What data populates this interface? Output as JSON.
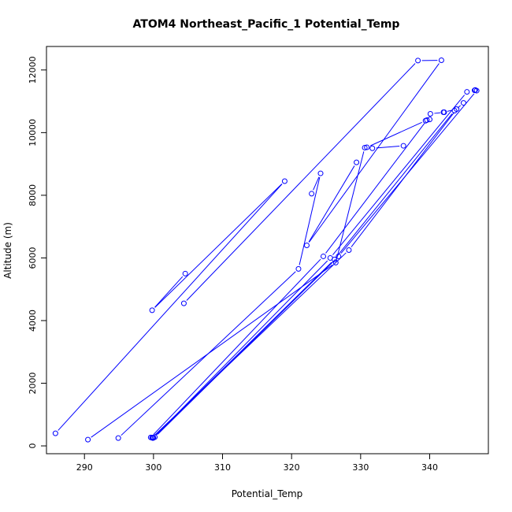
{
  "chart_data": {
    "type": "scatter",
    "title": "ATOM4 Northeast_Pacific_1 Potential_Temp",
    "xlabel": "Potential_Temp",
    "ylabel": "Altitude (m)",
    "xlim": [
      284.5,
      348.5
    ],
    "ylim": [
      -250,
      12750
    ],
    "x_ticks": [
      290,
      300,
      310,
      320,
      330,
      340
    ],
    "y_ticks": [
      0,
      2000,
      4000,
      6000,
      8000,
      10000,
      12000
    ],
    "grid": false,
    "color": "#0000ff",
    "series": [
      {
        "x": [
          285.8,
          319.0,
          299.8,
          304.6
        ],
        "y": [
          400,
          8450,
          4330,
          5500
        ]
      },
      {
        "x": [
          290.5,
          326.4,
          330.6,
          331.7,
          336.2
        ],
        "y": [
          200,
          5850,
          9520,
          9500,
          9580
        ]
      },
      {
        "x": [
          294.9,
          321.0,
          324.2,
          322.9
        ],
        "y": [
          250,
          5650,
          8700,
          8050
        ]
      },
      {
        "x": [
          299.6,
          324.6,
          339.6,
          340.1,
          342.1
        ],
        "y": [
          270,
          6050,
          10400,
          10600,
          10650
        ]
      },
      {
        "x": [
          299.9,
          326.2,
          343.6,
          344.9
        ],
        "y": [
          250,
          5950,
          10700,
          10950
        ]
      },
      {
        "x": [
          300.0,
          325.6,
          345.4,
          346.5
        ],
        "y": [
          260,
          6000,
          11300,
          11350
        ]
      },
      {
        "x": [
          300.2,
          326.8,
          346.8,
          346.6
        ],
        "y": [
          280,
          6050,
          11340,
          11360
        ]
      },
      {
        "x": [
          299.8,
          328.3,
          343.9,
          342.0
        ],
        "y": [
          265,
          6250,
          10750,
          10650
        ]
      },
      {
        "x": [
          304.4,
          338.3,
          341.7,
          322.2,
          329.4
        ],
        "y": [
          4550,
          12300,
          12310,
          6400,
          9050
        ]
      },
      {
        "x": [
          330.9,
          339.4,
          340.0
        ],
        "y": [
          9530,
          10380,
          10420
        ]
      }
    ]
  }
}
